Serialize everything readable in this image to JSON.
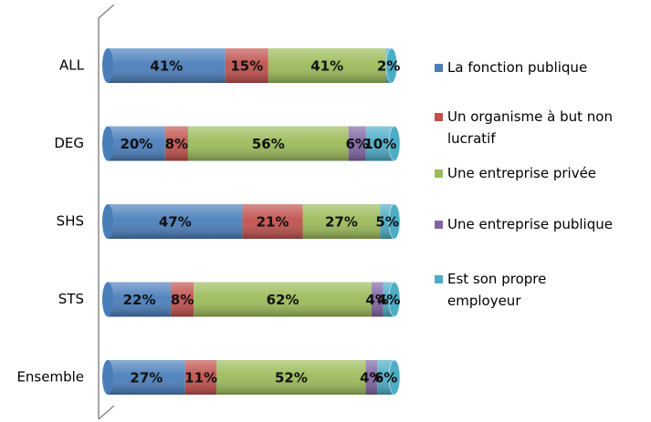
{
  "chart_data": {
    "type": "stacked-bar-horizontal",
    "categories": [
      "ALL",
      "DEG",
      "SHS",
      "STS",
      "Ensemble"
    ],
    "xlim": [
      0,
      100
    ],
    "legend": "right",
    "series": [
      {
        "name": "La fonction publique",
        "color": "#4a7ebb",
        "values": [
          41,
          20,
          47,
          22,
          27
        ],
        "value_labels": [
          "41%",
          "20%",
          "47%",
          "22%",
          "27%"
        ]
      },
      {
        "name": "Un organisme à but non lucratif",
        "color": "#c0504d",
        "values": [
          15,
          8,
          21,
          8,
          11
        ],
        "value_labels": [
          "15%",
          "8%",
          "21%",
          "8%",
          "11%"
        ]
      },
      {
        "name": "Une entreprise privée",
        "color": "#9bbb59",
        "values": [
          41,
          56,
          27,
          62,
          52
        ],
        "value_labels": [
          "41%",
          "56%",
          "27%",
          "62%",
          "52%"
        ]
      },
      {
        "name": "Une entreprise publique",
        "color": "#8064a2",
        "values": [
          null,
          6,
          null,
          4,
          4
        ],
        "value_labels": [
          null,
          "6%",
          null,
          "4%",
          "4%"
        ]
      },
      {
        "name": "Est son propre employeur",
        "color": "#4bacc6",
        "values": [
          2,
          10,
          5,
          4,
          6
        ],
        "value_labels": [
          "2%",
          "10%",
          "5%",
          "4%",
          "6%"
        ]
      }
    ]
  }
}
